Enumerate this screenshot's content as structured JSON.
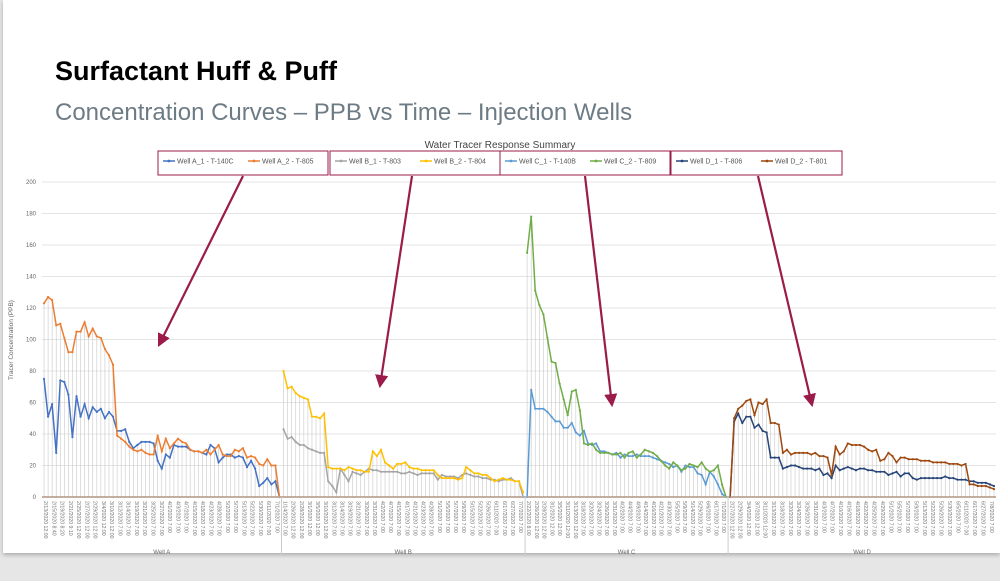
{
  "slide": {
    "title": "Surfactant Huff & Puff",
    "subtitle": "Concentration Curves – PPB vs Time – Injection Wells"
  },
  "chart_data": {
    "type": "line",
    "title": "Water Tracer Response Summary",
    "xlabel": "",
    "ylabel": "Tracer Concentration (PPB)",
    "ylim": [
      0,
      200
    ],
    "yticks": [
      0,
      20,
      40,
      60,
      80,
      100,
      120,
      140,
      160,
      180,
      200
    ],
    "grid": true,
    "legend_position": "top",
    "annotation_color": "#9b1b4b",
    "legend_groups": [
      {
        "series": [
          {
            "name": "Well A_1 - T-140C",
            "color": "#4472c4"
          },
          {
            "name": "Well A_2 - T-805",
            "color": "#ed7d31"
          }
        ]
      },
      {
        "series": [
          {
            "name": "Well B_1 - T-803",
            "color": "#a5a5a5"
          },
          {
            "name": "Well B_2 - T-804",
            "color": "#ffc000"
          }
        ]
      },
      {
        "series": [
          {
            "name": "Well C_1 - T-140B",
            "color": "#5b9bd5"
          },
          {
            "name": "Well C_2 - T-809",
            "color": "#70ad47"
          }
        ]
      },
      {
        "series": [
          {
            "name": "Well D_1 - T-806",
            "color": "#264478"
          },
          {
            "name": "Well D_2 - T-801",
            "color": "#9e480e"
          }
        ]
      }
    ],
    "groups": [
      {
        "name": "Well A",
        "tick_labels": [
          "2/13/2020 12:00",
          "2/15/2020 8:40",
          "2/19/2020 8:20",
          "2/21/2020 9:10",
          "2/25/2020 12:00",
          "2/27/2020 12:00",
          "2/29/2020 12:00",
          "3/4/2020 12:00",
          "3/10/2020 12:00",
          "3/12/2020 7:00",
          "3/14/2020 7:00",
          "3/19/2020 7:00",
          "3/21/2020 7:00",
          "3/25/2020 7:00",
          "3/27/2020 7:00",
          "4/1/2020 7:00",
          "4/3/2020 7:00",
          "4/7/2020 7:00",
          "4/15/2020 7:00",
          "4/18/2020 7:00",
          "4/23/2020 7:00",
          "4/28/2020 7:00",
          "5/2/2020 7:00",
          "5/7/2020 7:00",
          "5/13/2020 7:00",
          "5/22/2020 7:00",
          "5/30/2020 7:00",
          "6/11/2020 7:00",
          "7/1/2020 7:00"
        ],
        "series": [
          {
            "name": "Well A_1 - T-140C",
            "color": "#4472c4",
            "values": [
              75,
              51,
              59,
              28,
              74,
              73,
              65,
              38,
              64,
              51,
              59,
              50,
              57,
              54,
              56,
              50,
              54,
              51,
              42,
              42,
              43,
              35,
              31,
              33,
              35,
              35,
              35,
              34,
              23,
              18,
              27,
              25,
              33,
              32,
              32,
              32,
              30,
              29,
              29,
              28,
              27,
              33,
              31,
              22,
              25,
              27,
              27,
              25,
              26,
              25,
              19,
              23,
              18,
              7,
              9,
              12,
              8,
              10,
              0
            ]
          },
          {
            "name": "Well A_2 - T-805",
            "color": "#ed7d31",
            "values": [
              123,
              127,
              125,
              109,
              110,
              101,
              92,
              92,
              105,
              105,
              111,
              102,
              107,
              102,
              101,
              94,
              90,
              84,
              39,
              37,
              35,
              32,
              30,
              29,
              30,
              28,
              27,
              27,
              39,
              29,
              37,
              31,
              34,
              37,
              35,
              34,
              30,
              29,
              29,
              28,
              30,
              27,
              30,
              33,
              27,
              26,
              26,
              30,
              29,
              31,
              25,
              26,
              25,
              21,
              20,
              24,
              20,
              20,
              0
            ]
          }
        ]
      },
      {
        "name": "Well B",
        "tick_labels": [
          "1/14/2020 7:00",
          "2/26/2020 12:00",
          "2/28/2020 12:00",
          "3/1/2020 12:00",
          "3/5/2020 12:00",
          "3/10/2020 12:00",
          "3/12/2020 7:00",
          "3/14/2020 7:00",
          "3/19/2020 7:00",
          "3/21/2020 7:00",
          "3/26/2020 7:00",
          "3/31/2020 7:00",
          "4/2/2020 7:00",
          "4/7/2020 7:00",
          "4/15/2020 7:00",
          "4/17/2020 7:00",
          "4/21/2020 7:00",
          "4/23/2020 7:00",
          "4/28/2020 7:00",
          "5/1/2020 7:00",
          "5/5/2020 7:00",
          "5/7/2020 7:00",
          "5/9/2020 7:00",
          "5/15/2020 7:00",
          "5/22/2020 7:00",
          "5/26/2020 7:00",
          "6/11/2020 7:00",
          "6/17/2020 7:00",
          "6/27/2020 7:00",
          "7/7/2020 7:00"
        ],
        "series": [
          {
            "name": "Well B_1 - T-803",
            "color": "#a5a5a5",
            "values": [
              43,
              37,
              38,
              35,
              33,
              33,
              31,
              30,
              29,
              28,
              28,
              10,
              7,
              3,
              18,
              14,
              10,
              16,
              15,
              14,
              16,
              18,
              17,
              17,
              16,
              16,
              16,
              16,
              16,
              15,
              15,
              16,
              15,
              14,
              15,
              15,
              15,
              15,
              11,
              14,
              13,
              13,
              13,
              12,
              14,
              15,
              14,
              13,
              13,
              12,
              12,
              11,
              11,
              10,
              11,
              11,
              12,
              10,
              10,
              0
            ]
          },
          {
            "name": "Well B_2 - T-804",
            "color": "#ffc000",
            "values": [
              80,
              69,
              70,
              66,
              64,
              63,
              62,
              51,
              51,
              50,
              53,
              19,
              18,
              18,
              18,
              17,
              19,
              18,
              17,
              17,
              16,
              16,
              29,
              26,
              30,
              22,
              20,
              18,
              21,
              21,
              22,
              19,
              18,
              18,
              17,
              17,
              17,
              17,
              14,
              12,
              12,
              12,
              12,
              11,
              12,
              19,
              17,
              15,
              15,
              14,
              14,
              12,
              10,
              11,
              12,
              11,
              11,
              10,
              10,
              3
            ]
          }
        ]
      },
      {
        "name": "Well C",
        "tick_labels": [
          "2/22/2020 8:00",
          "2/26/2020 12:00",
          "2/28/2020 12:00",
          "3/1/2020 12:00",
          "3/5/2020 12:00",
          "3/11/2020 12:00",
          "3/13/2020 12:00",
          "3/18/2020 7:00",
          "3/20/2020 7:00",
          "3/24/2020 7:00",
          "3/26/2020 7:00",
          "3/31/2020 7:00",
          "4/2/2020 7:00",
          "4/4/2020 7:00",
          "4/9/2020 7:00",
          "4/14/2020 7:00",
          "4/16/2020 7:00",
          "4/21/2020 7:00",
          "4/30/2020 7:00",
          "5/5/2020 7:00",
          "5/9/2020 7:00",
          "5/14/2020 7:00",
          "5/29/2020 7:00",
          "6/6/2020 7:00",
          "6/17/2020 7:00",
          "7/1/2020 7:00"
        ],
        "series": [
          {
            "name": "Well C_1 - T-140B",
            "color": "#5b9bd5",
            "values": [
              0,
              68,
              56,
              56,
              56,
              54,
              51,
              48,
              48,
              44,
              44,
              47,
              41,
              39,
              42,
              34,
              33,
              34,
              29,
              29,
              28,
              27,
              28,
              25,
              27,
              26,
              26,
              27,
              26,
              26,
              26,
              25,
              24,
              23,
              22,
              21,
              19,
              20,
              16,
              20,
              19,
              19,
              15,
              14,
              8,
              16,
              13,
              8,
              2,
              0
            ]
          },
          {
            "name": "Well C_2 - T-809",
            "color": "#70ad47",
            "values": [
              155,
              178,
              131,
              122,
              116,
              101,
              86,
              85,
              72,
              62,
              52,
              67,
              68,
              55,
              34,
              33,
              34,
              30,
              28,
              28,
              28,
              27,
              27,
              28,
              25,
              28,
              29,
              25,
              27,
              30,
              29,
              28,
              26,
              23,
              20,
              18,
              22,
              20,
              17,
              18,
              21,
              20,
              19,
              22,
              18,
              16,
              17,
              20,
              8,
              0
            ]
          }
        ]
      },
      {
        "name": "Well D",
        "tick_labels": [
          "2/27/2020 12:00",
          "2/29/2020 12:00",
          "3/4/2020 12:00",
          "3/7/2020 12:00",
          "3/11/2020 12:00",
          "3/13/2020 7:00",
          "3/18/2020 7:00",
          "3/20/2020 7:00",
          "3/24/2020 7:00",
          "3/26/2020 7:00",
          "3/31/2020 7:00",
          "4/3/2020 7:00",
          "4/7/2020 7:00",
          "4/10/2020 7:00",
          "4/16/2020 7:00",
          "4/18/2020 7:00",
          "4/22/2020 7:00",
          "4/25/2020 7:00",
          "4/29/2020 7:00",
          "5/1/2020 7:00",
          "5/5/2020 7:00",
          "5/7/2020 7:00",
          "5/9/2020 7:00",
          "5/13/2020 7:00",
          "5/22/2020 7:00",
          "5/26/2020 7:00",
          "5/30/2020 7:00",
          "6/5/2020 7:00",
          "6/11/2020 7:00",
          "6/17/2020 7:00",
          "6/27/2020 7:00",
          "7/8/2020 7:00"
        ],
        "series": [
          {
            "name": "Well D_1 - T-806",
            "color": "#264478",
            "values": [
              0,
              48,
              53,
              47,
              51,
              51,
              44,
              46,
              42,
              41,
              25,
              25,
              25,
              18,
              19,
              20,
              20,
              19,
              18,
              18,
              18,
              17,
              18,
              14,
              15,
              12,
              20,
              17,
              18,
              19,
              18,
              17,
              18,
              18,
              17,
              17,
              16,
              16,
              16,
              14,
              15,
              16,
              13,
              15,
              15,
              12,
              11,
              12,
              12,
              12,
              12,
              12,
              12,
              13,
              12,
              12,
              11,
              11,
              11,
              10,
              10,
              9,
              9,
              9,
              8,
              7
            ]
          },
          {
            "name": "Well D_2 - T-801",
            "color": "#9e480e",
            "values": [
              0,
              50,
              56,
              58,
              61,
              62,
              52,
              60,
              59,
              62,
              47,
              47,
              46,
              28,
              30,
              27,
              28,
              28,
              28,
              28,
              27,
              28,
              26,
              26,
              25,
              14,
              32,
              27,
              29,
              34,
              33,
              33,
              33,
              32,
              30,
              29,
              30,
              23,
              24,
              28,
              26,
              22,
              25,
              25,
              24,
              24,
              24,
              23,
              23,
              23,
              22,
              22,
              22,
              22,
              21,
              21,
              21,
              20,
              21,
              8,
              8,
              7,
              7,
              7,
              6,
              5
            ]
          }
        ]
      }
    ]
  }
}
